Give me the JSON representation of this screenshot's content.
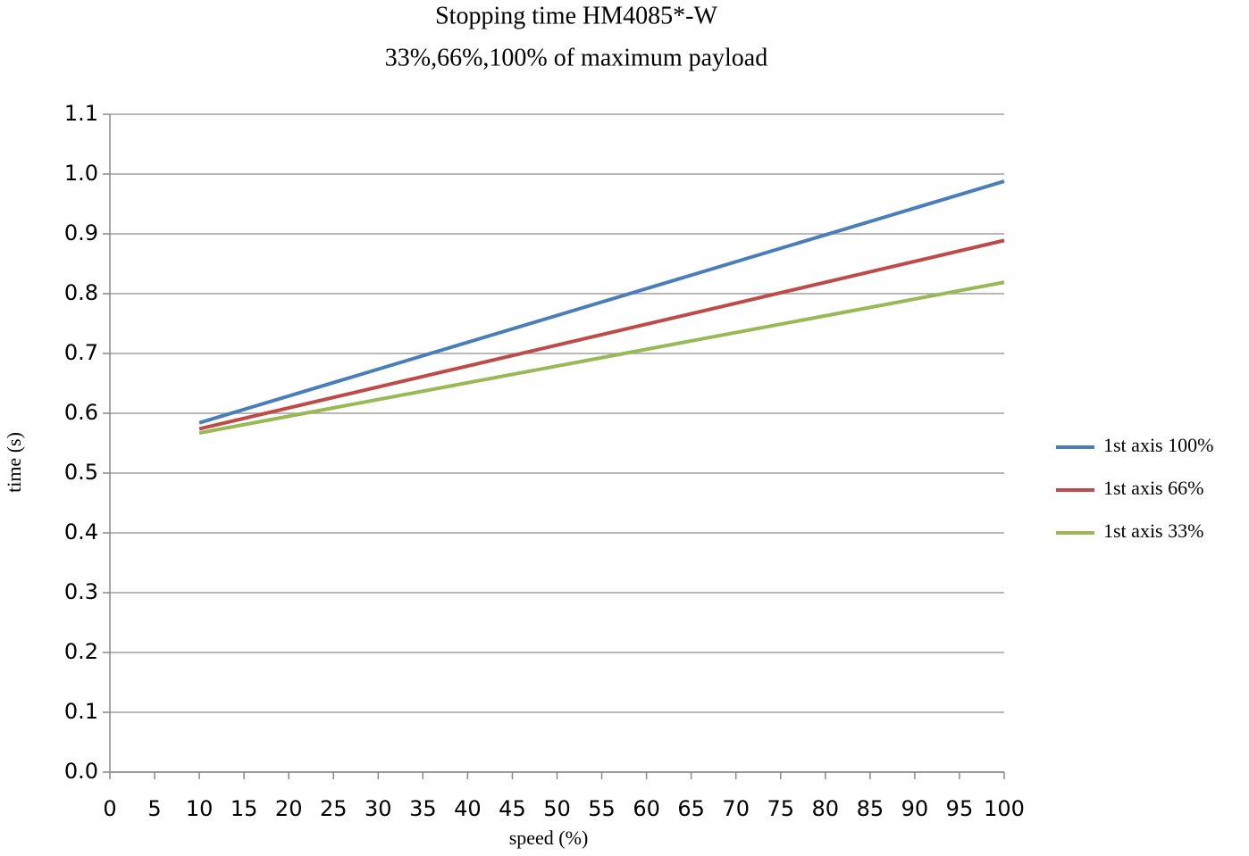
{
  "chart_data": {
    "type": "line",
    "title": "Stopping time HM4085*-W",
    "subtitle": "33%,66%,100% of maximum payload",
    "x_label": "speed (%)",
    "y_label": "time (s)",
    "x": [
      10,
      100
    ],
    "series": [
      {
        "name": "1st axis 100%",
        "color": "#4a7ebb",
        "values": [
          0.584,
          0.988
        ]
      },
      {
        "name": "1st axis 66%",
        "color": "#be4b48",
        "values": [
          0.574,
          0.889
        ]
      },
      {
        "name": "1st axis 33%",
        "color": "#98b954",
        "values": [
          0.567,
          0.819
        ]
      }
    ],
    "xlim": [
      0,
      100
    ],
    "xticks": [
      0,
      5,
      10,
      15,
      20,
      25,
      30,
      35,
      40,
      45,
      50,
      55,
      60,
      65,
      70,
      75,
      80,
      85,
      90,
      95,
      100
    ],
    "ylim": [
      0,
      1.1
    ],
    "yticks": [
      {
        "value": 0,
        "label": "0.0"
      },
      0.1,
      0.2,
      0.3,
      0.4,
      0.5,
      0.6,
      0.7,
      0.8,
      0.9,
      {
        "value": 1,
        "label": "1.0"
      },
      1.1
    ],
    "grid": true,
    "legend": "right"
  }
}
